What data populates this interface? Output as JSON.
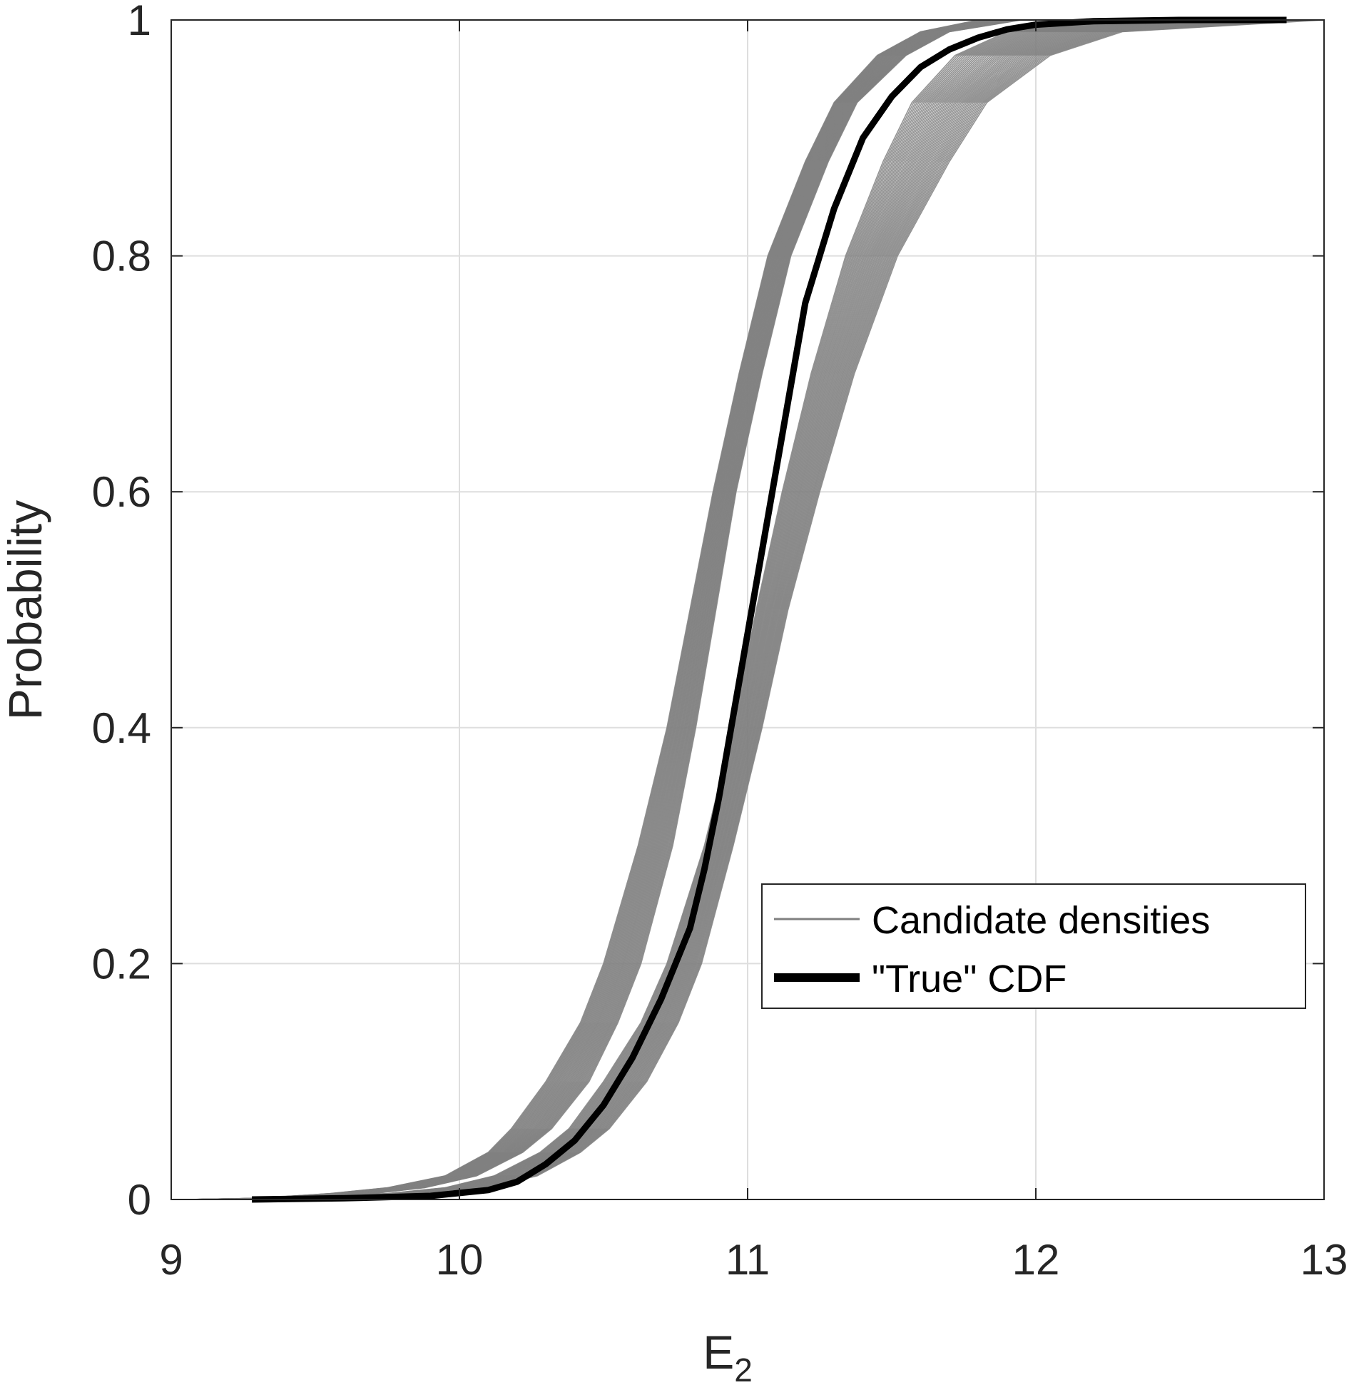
{
  "chart_data": {
    "type": "line",
    "xlabel": "E",
    "xlabel_subscript": "2",
    "ylabel": "Probability",
    "xlim": [
      9,
      13
    ],
    "ylim": [
      0,
      1
    ],
    "xticks": [
      "9",
      "10",
      "11",
      "12",
      "13"
    ],
    "yticks": [
      "0",
      "0.2",
      "0.4",
      "0.6",
      "0.8",
      "1"
    ],
    "grid": true,
    "legend_position": "lower-right",
    "legend": [
      {
        "label": "Candidate densities",
        "color": "#808080",
        "style": "thin"
      },
      {
        "label": "\"True\" CDF",
        "color": "#000000",
        "style": "thick"
      }
    ],
    "series": [
      {
        "label": "\"True\" CDF",
        "color": "#000000",
        "x": [
          9.28,
          9.6,
          9.9,
          10.1,
          10.2,
          10.3,
          10.4,
          10.5,
          10.6,
          10.7,
          10.75,
          10.8,
          10.85,
          10.9,
          10.95,
          11.0,
          11.05,
          11.1,
          11.15,
          11.2,
          11.25,
          11.3,
          11.35,
          11.4,
          11.5,
          11.6,
          11.7,
          11.8,
          11.9,
          12.0,
          12.2,
          12.5,
          12.87
        ],
        "y": [
          0.0,
          0.001,
          0.003,
          0.008,
          0.015,
          0.03,
          0.05,
          0.08,
          0.12,
          0.17,
          0.2,
          0.23,
          0.28,
          0.34,
          0.41,
          0.48,
          0.55,
          0.62,
          0.69,
          0.76,
          0.8,
          0.84,
          0.87,
          0.9,
          0.935,
          0.96,
          0.975,
          0.985,
          0.992,
          0.996,
          0.999,
          1.0,
          1.0
        ]
      }
    ],
    "candidate_bands": [
      {
        "label": "Candidate densities (left group)",
        "color": "#808080",
        "count": 45,
        "y": [
          0.0,
          0.001,
          0.005,
          0.01,
          0.02,
          0.04,
          0.06,
          0.1,
          0.15,
          0.2,
          0.3,
          0.4,
          0.5,
          0.6,
          0.7,
          0.8,
          0.88,
          0.93,
          0.97,
          0.99,
          1.0
        ],
        "x_low": [
          9.05,
          9.3,
          9.55,
          9.75,
          9.95,
          10.1,
          10.18,
          10.3,
          10.42,
          10.5,
          10.62,
          10.72,
          10.8,
          10.88,
          10.97,
          11.07,
          11.2,
          11.3,
          11.45,
          11.6,
          11.8
        ],
        "x_high": [
          9.1,
          9.4,
          9.7,
          9.88,
          10.06,
          10.22,
          10.32,
          10.45,
          10.55,
          10.63,
          10.74,
          10.82,
          10.89,
          10.96,
          11.05,
          11.15,
          11.28,
          11.38,
          11.55,
          11.7,
          11.95
        ]
      },
      {
        "label": "Candidate densities (right group)",
        "color": "#808080",
        "count": 45,
        "y": [
          0.0,
          0.001,
          0.005,
          0.01,
          0.02,
          0.04,
          0.06,
          0.1,
          0.15,
          0.2,
          0.3,
          0.4,
          0.5,
          0.6,
          0.7,
          0.8,
          0.88,
          0.93,
          0.97,
          0.99,
          1.0
        ],
        "x_low": [
          9.05,
          9.4,
          9.75,
          9.95,
          10.12,
          10.28,
          10.38,
          10.5,
          10.63,
          10.72,
          10.85,
          10.95,
          11.03,
          11.12,
          11.22,
          11.34,
          11.47,
          11.57,
          11.72,
          11.9,
          12.2
        ],
        "x_high": [
          9.12,
          9.5,
          9.9,
          10.1,
          10.27,
          10.42,
          10.52,
          10.65,
          10.76,
          10.84,
          10.95,
          11.05,
          11.14,
          11.25,
          11.37,
          11.52,
          11.7,
          11.83,
          12.05,
          12.3,
          13.0
        ]
      }
    ]
  }
}
